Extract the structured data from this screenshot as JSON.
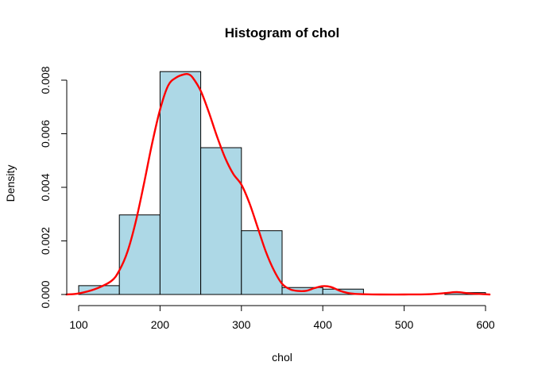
{
  "chart_data": {
    "type": "bar",
    "title": "Histogram of chol",
    "xlabel": "chol",
    "ylabel": "Density",
    "bin_edges": [
      100,
      150,
      200,
      250,
      300,
      350,
      400,
      450,
      500,
      550,
      600
    ],
    "values": [
      0.00033,
      0.00297,
      0.00832,
      0.00548,
      0.00238,
      0.00026,
      0.0002,
      0.0,
      0.0,
      7e-05
    ],
    "xlim": [
      80,
      610
    ],
    "ylim": [
      0,
      0.0083
    ],
    "x_ticks": [
      100,
      200,
      300,
      400,
      500,
      600
    ],
    "x_tick_labels": [
      "100",
      "200",
      "300",
      "400",
      "500",
      "600"
    ],
    "y_ticks": [
      0,
      0.002,
      0.004,
      0.006,
      0.008
    ],
    "y_tick_labels": [
      "0.000",
      "0.002",
      "0.004",
      "0.006",
      "0.008"
    ],
    "bar_color": "#add8e6",
    "density_curve": {
      "color": "#ff0000",
      "x": [
        85,
        100,
        120,
        140,
        150,
        160,
        170,
        180,
        190,
        200,
        210,
        220,
        230,
        235,
        240,
        250,
        260,
        270,
        280,
        290,
        300,
        310,
        320,
        330,
        340,
        350,
        360,
        370,
        380,
        390,
        400,
        410,
        420,
        430,
        440,
        450,
        470,
        500,
        530,
        550,
        565,
        580,
        600,
        605
      ],
      "y": [
        0.0,
        4e-05,
        0.0002,
        0.0005,
        0.0009,
        0.0016,
        0.0027,
        0.0041,
        0.0056,
        0.0069,
        0.0078,
        0.0081,
        0.00822,
        0.00822,
        0.0081,
        0.0076,
        0.0068,
        0.0059,
        0.0051,
        0.0045,
        0.0041,
        0.0034,
        0.0025,
        0.0016,
        0.0009,
        0.0004,
        0.00019,
        0.00013,
        0.00014,
        0.00024,
        0.00031,
        0.00028,
        0.00015,
        6e-05,
        2e-05,
        1e-05,
        0.0,
        0.0,
        1e-05,
        5e-05,
        9e-05,
        4e-05,
        1e-05,
        0.0
      ]
    }
  }
}
